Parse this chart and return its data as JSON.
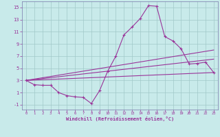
{
  "xlabel": "Windchill (Refroidissement éolien,°C)",
  "background_color": "#c8eaea",
  "line_color": "#993399",
  "grid_color": "#a0c8c8",
  "spine_color": "#7777aa",
  "xlim": [
    -0.5,
    23.5
  ],
  "ylim": [
    -1.8,
    16.0
  ],
  "xticks": [
    0,
    1,
    2,
    3,
    4,
    5,
    6,
    7,
    8,
    9,
    10,
    11,
    12,
    13,
    14,
    15,
    16,
    17,
    18,
    19,
    20,
    21,
    22,
    23
  ],
  "yticks": [
    -1,
    1,
    3,
    5,
    7,
    9,
    11,
    13,
    15
  ],
  "line1_x": [
    0,
    1,
    2,
    3,
    4,
    5,
    6,
    7,
    8,
    9,
    10,
    11,
    12,
    13,
    14,
    15,
    16,
    17,
    18,
    19,
    20,
    21,
    22,
    23
  ],
  "line1_y": [
    3.0,
    2.3,
    2.2,
    2.2,
    1.0,
    0.5,
    0.3,
    0.2,
    -0.8,
    1.3,
    4.5,
    7.0,
    10.5,
    11.8,
    13.2,
    15.3,
    15.2,
    10.2,
    9.5,
    8.2,
    5.7,
    5.8,
    6.0,
    4.3
  ],
  "line2_x": [
    0,
    23
  ],
  "line2_y": [
    3.0,
    8.0
  ],
  "line3_x": [
    0,
    23
  ],
  "line3_y": [
    3.0,
    6.5
  ],
  "line4_x": [
    0,
    23
  ],
  "line4_y": [
    3.0,
    4.3
  ]
}
